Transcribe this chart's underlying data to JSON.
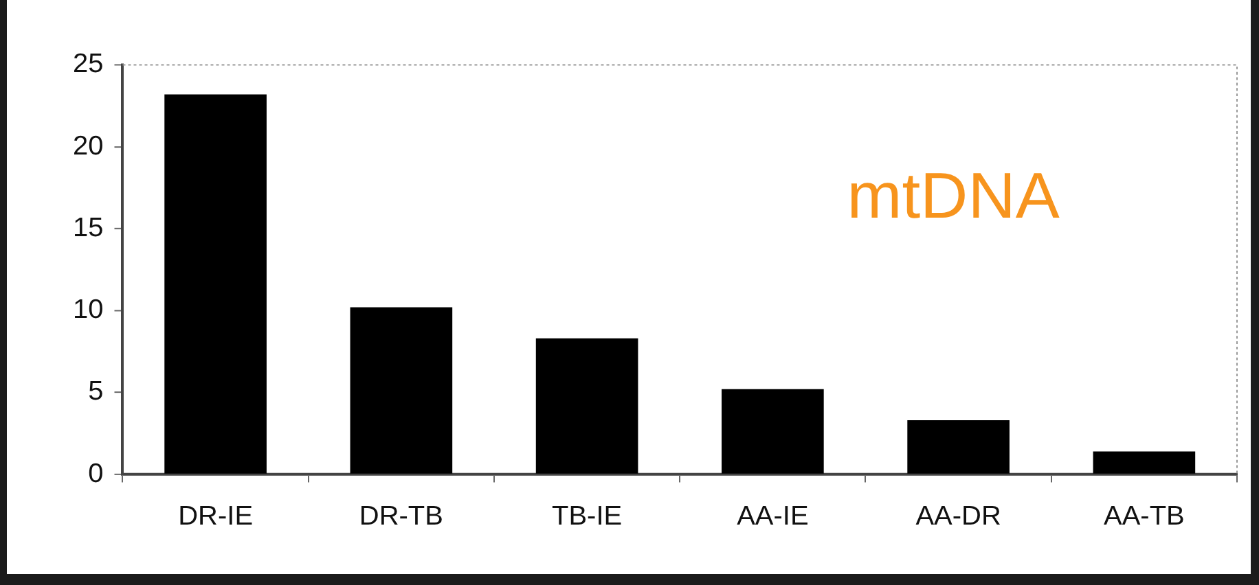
{
  "chart_data": {
    "type": "bar",
    "categories": [
      "DR-IE",
      "DR-TB",
      "TB-IE",
      "AA-IE",
      "AA-DR",
      "AA-TB"
    ],
    "values": [
      23.2,
      10.2,
      8.3,
      5.2,
      3.3,
      1.4
    ],
    "color": "#000000",
    "ylim": [
      0,
      25
    ],
    "yticks": [
      0,
      5,
      10,
      15,
      20,
      25
    ],
    "grid": false,
    "legend": false,
    "annotations": [
      "mtDNA"
    ]
  }
}
